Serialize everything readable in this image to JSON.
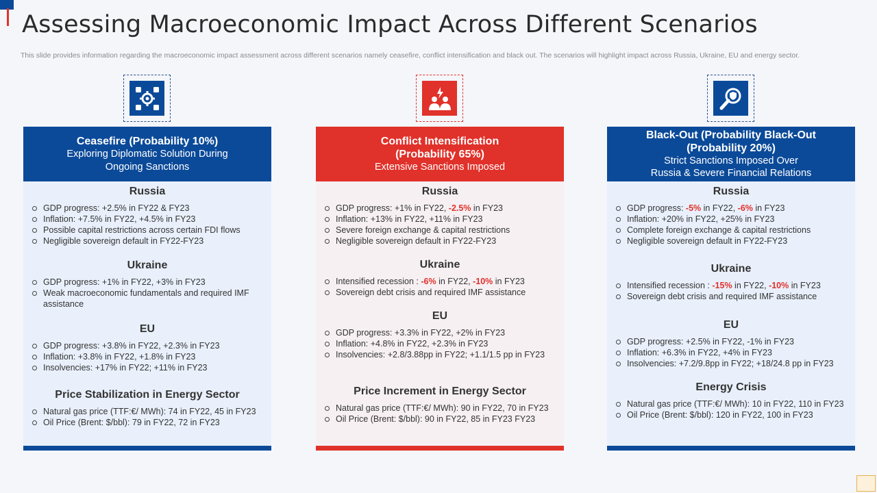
{
  "title": "Assessing Macroeconomic Impact Across Different Scenarios",
  "description": "This slide provides information regarding the macroeconomic impact assessment across different scenarios namely ceasefire, conflict intensification and black out. The scenarios will highlight impact across Russia, Ukraine, EU and energy sector.",
  "colors": {
    "blue": "#0b4a99",
    "red": "#e0312a",
    "negative": "#e0312a"
  },
  "columns": [
    {
      "icon": "gear-network-icon",
      "heading": [
        "Ceasefire (Probability 10%)",
        "Exploring Diplomatic Solution During",
        "Ongoing Sanctions"
      ],
      "sections": [
        {
          "title": "Russia",
          "items": [
            "GDP progress: +2.5% in FY22 & FY23",
            "Inflation: +7.5% in FY22, +4.5% in FY23",
            "Possible capital restrictions across certain FDI flows",
            "Negligible sovereign default in FY22-FY23"
          ]
        },
        {
          "title": "Ukraine",
          "items": [
            "GDP progress: +1% in FY22, +3% in FY23",
            "Weak macroeconomic fundamentals and required IMF assistance"
          ]
        },
        {
          "title": "EU",
          "items": [
            "GDP progress: +3.8% in FY22, +2.3% in FY23",
            "Inflation: +3.8% in FY22, +1.8% in FY23",
            "Insolvencies: +17% in FY22; +11% in FY23"
          ]
        },
        {
          "title": "Price Stabilization in Energy Sector",
          "items": [
            "Natural gas price (TTF:€/ MWh): 74 in FY22, 45 in FY23",
            "Oil Price (Brent: $/bbl): 79 in FY22, 72 in FY23"
          ]
        }
      ]
    },
    {
      "icon": "conflict-people-icon",
      "heading": [
        "Conflict Intensification",
        "(Probability 65%)",
        "Extensive Sanctions Imposed"
      ],
      "sections": [
        {
          "title": "Russia",
          "items": [
            [
              "GDP progress: +1% in FY22, ",
              "-2.5%",
              " in FY23"
            ],
            "Inflation: +13% in FY22, +11% in FY23",
            "Severe foreign exchange & capital restrictions",
            "Negligible sovereign default in FY22-FY23"
          ]
        },
        {
          "title": "Ukraine",
          "items": [
            [
              "Intensified recession : ",
              "-6%",
              " in FY22, ",
              "-10%",
              " in FY23"
            ],
            "Sovereign debt crisis and required IMF assistance"
          ]
        },
        {
          "title": "EU",
          "items": [
            "GDP progress: +3.3% in FY22, +2% in FY23",
            "Inflation: +4.8% in FY22, +2.3% in FY23",
            "Insolvencies: +2.8/3.88pp in FY22; +1.1/1.5 pp in FY23"
          ]
        },
        {
          "title": "Price Increment in Energy Sector",
          "items": [
            "Natural gas price (TTF:€/ MWh): 90 in FY22, 70 in FY23",
            "Oil Price (Brent: $/bbl): 90 in FY22, 85 in FY23 FY23"
          ]
        }
      ]
    },
    {
      "icon": "search-shield-icon",
      "heading": [
        "Black-Out (Probability Black-Out",
        "(Probability 20%)",
        "Strict Sanctions Imposed Over",
        "Russia & Severe Financial Relations"
      ],
      "sections": [
        {
          "title": "Russia",
          "items": [
            [
              "GDP progress: ",
              "-5%",
              " in FY22, ",
              "-6%",
              " in FY23"
            ],
            "Inflation: +20% in FY22, +25% in FY23",
            "Complete foreign exchange & capital restrictions",
            "Negligible sovereign default in FY22-FY23"
          ]
        },
        {
          "title": "Ukraine",
          "items": [
            [
              "Intensified recession : ",
              "-15%",
              " in FY22, ",
              "-10%",
              " in FY23"
            ],
            "Sovereign debt crisis and required IMF assistance"
          ]
        },
        {
          "title": "EU",
          "items": [
            "GDP progress: +2.5% in FY22, -1% in FY23",
            "Inflation: +6.3% in FY22, +4% in FY23",
            "Insolvencies: +7.2/9.8pp in FY22; +18/24.8 pp in FY23"
          ]
        },
        {
          "title": "Energy Crisis",
          "items": [
            "Natural gas price (TTF:€/ MWh): 10 in FY22, 110 in FY23",
            "Oil Price (Brent: $/bbl): 120 in FY22, 100 in FY23"
          ]
        }
      ]
    }
  ]
}
